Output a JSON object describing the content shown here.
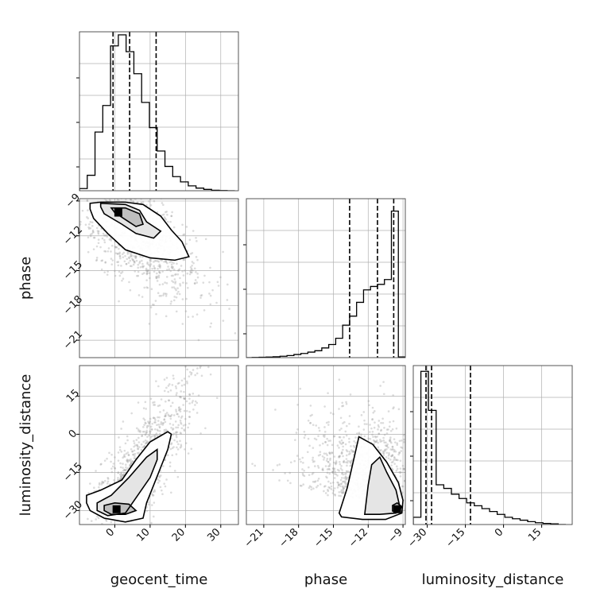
{
  "chart_data": {
    "type": "corner",
    "parameters": [
      "geocent_time",
      "phase",
      "luminosity_distance"
    ],
    "axis_labels": {
      "geocent_time": "geocent_time",
      "phase": "phase",
      "luminosity_distance": "luminosity_distance"
    },
    "ranges": {
      "geocent_time": [
        -10,
        35
      ],
      "phase": [
        -22.5,
        -8.8
      ],
      "luminosity_distance": [
        -35.5,
        27
      ]
    },
    "ticks": {
      "geocent_time": [
        0,
        10,
        20,
        30
      ],
      "phase": [
        -21,
        -18,
        -15,
        -12,
        -9
      ],
      "luminosity_distance": [
        -30,
        -15,
        0,
        15
      ]
    },
    "tick_labels": {
      "geocent_time": [
        "0",
        "10",
        "20",
        "30"
      ],
      "phase": [
        "−21",
        "−18",
        "−15",
        "−12",
        "−9"
      ],
      "luminosity_distance": [
        "−30",
        "−15",
        "0",
        "15"
      ]
    },
    "quantiles": {
      "geocent_time": [
        -0.5,
        4.2,
        11.7
      ],
      "phase": [
        -13.6,
        -11.2,
        -9.8
      ],
      "luminosity_distance": [
        -30.5,
        -28.3,
        -13.0
      ]
    },
    "histograms": {
      "geocent_time": {
        "edges": [
          -10,
          -7.8,
          -5.6,
          -3.4,
          -1.2,
          1.0,
          3.2,
          5.4,
          7.6,
          9.8,
          12.0,
          14.2,
          16.4,
          18.6,
          20.8,
          23.0,
          25.2,
          27.4,
          29.6,
          31.8,
          34.0
        ],
        "counts": [
          0.5,
          3.5,
          13.3,
          19.3,
          32.8,
          35.3,
          31.5,
          26.5,
          20.0,
          14.3,
          9.0,
          5.5,
          3.2,
          2.0,
          1.1,
          0.6,
          0.3,
          0.1,
          0.05,
          0
        ],
        "ylim": [
          0,
          36
        ]
      },
      "phase": {
        "edges": [
          -22.6,
          -22.0,
          -21.4,
          -20.8,
          -20.2,
          -19.6,
          -19.0,
          -18.4,
          -17.8,
          -17.2,
          -16.6,
          -16.0,
          -15.4,
          -14.8,
          -14.2,
          -13.6,
          -13.0,
          -12.4,
          -11.8,
          -11.2,
          -10.6,
          -10.0,
          -9.4,
          -8.8
        ],
        "counts": [
          0,
          0.03,
          0.05,
          0.08,
          0.12,
          0.2,
          0.3,
          0.45,
          0.6,
          0.8,
          1.0,
          1.4,
          1.9,
          2.8,
          4.7,
          6.0,
          8.0,
          9.8,
          10.3,
          10.6,
          11.3,
          21.2,
          0.1
        ],
        "ylim": [
          0,
          23
        ]
      },
      "luminosity_distance": {
        "edges": [
          -35.5,
          -32.5,
          -29.5,
          -26.5,
          -23.5,
          -20.5,
          -17.5,
          -14.5,
          -11.5,
          -8.5,
          -5.5,
          -2.5,
          0.5,
          3.5,
          6.5,
          9.5,
          12.5,
          15.5,
          18.5,
          21.5,
          24.5
        ],
        "counts": [
          1.0,
          21.2,
          15.8,
          5.5,
          5.0,
          4.2,
          3.6,
          3.0,
          2.6,
          2.2,
          1.8,
          1.4,
          1.0,
          0.8,
          0.6,
          0.4,
          0.25,
          0.15,
          0.1,
          0
        ],
        "ylim": [
          0,
          22
        ]
      }
    },
    "pairs": [
      {
        "x": "geocent_time",
        "y": "phase",
        "center": [
          3,
          -10.8
        ],
        "contour_levels": [
          [
            [
              -7,
              -9.2
            ],
            [
              -4,
              -9.1
            ],
            [
              3,
              -9.1
            ],
            [
              8,
              -9.3
            ],
            [
              13,
              -10.3
            ],
            [
              16,
              -11.5
            ],
            [
              19,
              -12.5
            ],
            [
              21,
              -13.8
            ],
            [
              17,
              -14.1
            ],
            [
              10,
              -13.9
            ],
            [
              3,
              -13.2
            ],
            [
              -2,
              -11.8
            ],
            [
              -6,
              -10.5
            ],
            [
              -7,
              -9.7
            ]
          ],
          [
            [
              -4,
              -9.2
            ],
            [
              3,
              -9.3
            ],
            [
              7,
              -9.8
            ],
            [
              9,
              -10.8
            ],
            [
              13,
              -11.6
            ],
            [
              11,
              -12.2
            ],
            [
              6,
              -11.8
            ],
            [
              2,
              -11.0
            ],
            [
              -3,
              -10.1
            ],
            [
              -4,
              -9.5
            ]
          ],
          [
            [
              -1,
              -9.6
            ],
            [
              3,
              -9.6
            ],
            [
              7,
              -10.1
            ],
            [
              8,
              -11.0
            ],
            [
              6,
              -11.2
            ],
            [
              3,
              -10.6
            ],
            [
              0,
              -10.0
            ]
          ]
        ],
        "density_peak": [
          1,
          -10.0
        ]
      },
      {
        "x": "geocent_time",
        "y": "luminosity_distance",
        "center": [
          3,
          -25
        ],
        "contour_levels": [
          [
            [
              -8,
              -24
            ],
            [
              -4,
              -22
            ],
            [
              2,
              -18
            ],
            [
              6,
              -10
            ],
            [
              10,
              -3
            ],
            [
              15,
              1
            ],
            [
              16,
              0
            ],
            [
              15,
              -6
            ],
            [
              13,
              -13
            ],
            [
              11,
              -20
            ],
            [
              9,
              -27
            ],
            [
              8,
              -33
            ],
            [
              3,
              -34.5
            ],
            [
              -3,
              -33
            ],
            [
              -7,
              -30
            ],
            [
              -8,
              -27
            ]
          ],
          [
            [
              -5,
              -27
            ],
            [
              -1,
              -24
            ],
            [
              4,
              -17
            ],
            [
              9,
              -9
            ],
            [
              12,
              -6
            ],
            [
              12,
              -10
            ],
            [
              10,
              -17
            ],
            [
              6,
              -25
            ],
            [
              3,
              -31
            ],
            [
              -2,
              -32
            ],
            [
              -5,
              -30
            ]
          ],
          [
            [
              -3,
              -28
            ],
            [
              0,
              -27
            ],
            [
              4,
              -27.5
            ],
            [
              6,
              -30
            ],
            [
              3,
              -31.5
            ],
            [
              -1,
              -31.5
            ],
            [
              -3,
              -30
            ]
          ]
        ],
        "density_peak": [
          0.5,
          -29.5
        ]
      },
      {
        "x": "phase",
        "y": "luminosity_distance",
        "center": [
          -11,
          -25
        ],
        "contour_levels": [
          [
            [
              -14.5,
              -31
            ],
            [
              -13.8,
              -21
            ],
            [
              -13.4,
              -13
            ],
            [
              -12.8,
              -1
            ],
            [
              -11.6,
              -4
            ],
            [
              -10.4,
              -11
            ],
            [
              -9.4,
              -19
            ],
            [
              -9.0,
              -26
            ],
            [
              -9.1,
              -31
            ],
            [
              -10.5,
              -33.5
            ],
            [
              -12.5,
              -33.5
            ],
            [
              -14.3,
              -32.5
            ]
          ],
          [
            [
              -12.3,
              -31.5
            ],
            [
              -12.0,
              -20
            ],
            [
              -11.7,
              -12
            ],
            [
              -11.0,
              -9
            ],
            [
              -10.4,
              -15
            ],
            [
              -9.6,
              -22
            ],
            [
              -9.3,
              -28
            ],
            [
              -9.6,
              -31
            ],
            [
              -11,
              -31.5
            ]
          ],
          [
            [
              -9.9,
              -28
            ],
            [
              -9.5,
              -27
            ],
            [
              -9.1,
              -28.5
            ],
            [
              -9.4,
              -30.5
            ],
            [
              -9.9,
              -30.2
            ]
          ]
        ],
        "density_peak": [
          -9.5,
          -29.5
        ]
      }
    ]
  }
}
